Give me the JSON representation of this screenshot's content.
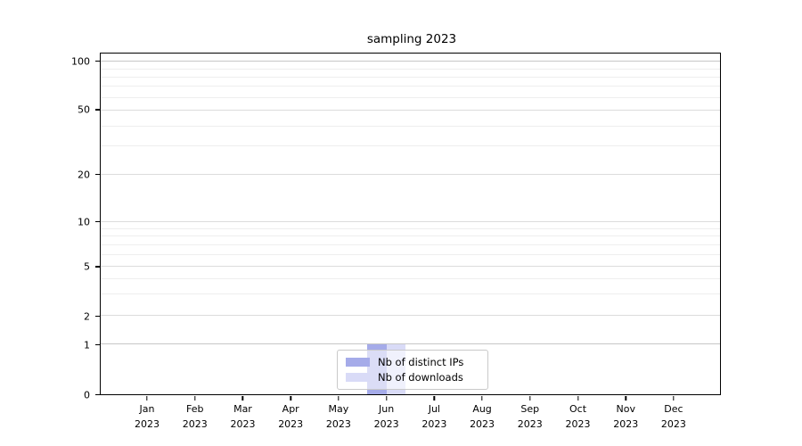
{
  "chart_data": {
    "type": "bar",
    "title": "sampling 2023",
    "categories": [
      "Jan 2023",
      "Feb 2023",
      "Mar 2023",
      "Apr 2023",
      "May 2023",
      "Jun 2023",
      "Jul 2023",
      "Aug 2023",
      "Sep 2023",
      "Oct 2023",
      "Nov 2023",
      "Dec 2023"
    ],
    "series": [
      {
        "name": "Nb of distinct IPs",
        "color": "#a5abe9",
        "values": [
          0,
          0,
          0,
          0,
          0,
          1,
          0,
          0,
          0,
          0,
          0,
          0
        ]
      },
      {
        "name": "Nb of downloads",
        "color": "#d9dbf7",
        "values": [
          0,
          0,
          0,
          0,
          0,
          1,
          0,
          0,
          0,
          0,
          0,
          0
        ]
      }
    ],
    "xlabel": "",
    "ylabel": "",
    "y_axis": {
      "scale": "symlog-like",
      "ticks": [
        0,
        1,
        2,
        5,
        10,
        20,
        50,
        100
      ],
      "emphasized_gridlines": [
        1,
        100
      ],
      "tick_fractions": {
        "0": 0,
        "1": 0.1466,
        "2": 0.2304,
        "5": 0.3743,
        "10": 0.5052,
        "20": 0.644,
        "50": 0.8325,
        "100": 0.9752
      },
      "minor_gridline_fractions": {
        "3": 0.2932,
        "4": 0.339,
        "6": 0.4084,
        "7": 0.4372,
        "8": 0.4634,
        "9": 0.4856,
        "30": 0.7277,
        "40": 0.7866,
        "60": 0.8704,
        "70": 0.9031,
        "80": 0.9306,
        "90": 0.9542
      }
    },
    "x_axis": {
      "first_center_frac": 0.0761,
      "step_frac": 0.07707,
      "bar_width_frac": 0.0309
    },
    "legend_position": "lower center",
    "grid": {
      "horizontal": true,
      "vertical": false
    }
  },
  "colors": {
    "grid_emphasized": "#c6c6c6",
    "grid_major": "#dcdcdc",
    "grid_minor": "#eeeeee",
    "spine": "#000000",
    "legend_border": "#c9c9c9",
    "text": "#000000"
  }
}
